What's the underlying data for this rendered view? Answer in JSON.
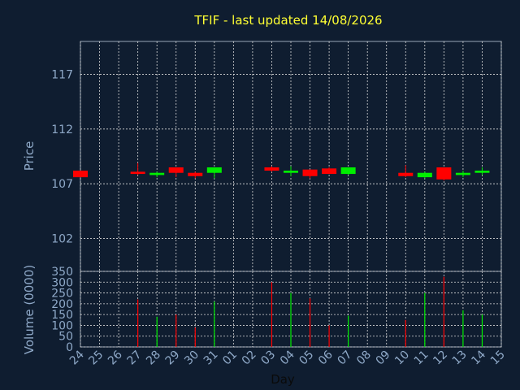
{
  "chart_data": [
    {
      "type": "candlestick",
      "title": "TFIF - last updated 14/08/2026",
      "ylabel": "Price",
      "ylim": [
        99,
        120
      ],
      "yticks": [
        102,
        107,
        112,
        117
      ],
      "grid": true,
      "x": [
        "24",
        "25",
        "26",
        "27",
        "28",
        "29",
        "30",
        "31",
        "01",
        "02",
        "03",
        "04",
        "05",
        "06",
        "07",
        "08",
        "09",
        "10",
        "11",
        "12",
        "13",
        "14",
        "15"
      ],
      "series": [
        {
          "x": "24",
          "open": 108.2,
          "high": 108.2,
          "low": 107.6,
          "close": 107.6,
          "color": "#ff0000"
        },
        {
          "x": "27",
          "open": 108.1,
          "high": 108.9,
          "low": 107.8,
          "close": 107.9,
          "color": "#ff0000"
        },
        {
          "x": "28",
          "open": 107.8,
          "high": 108.1,
          "low": 107.6,
          "close": 108.0,
          "color": "#00ee00"
        },
        {
          "x": "29",
          "open": 108.5,
          "high": 108.5,
          "low": 107.6,
          "close": 108.0,
          "color": "#ff0000"
        },
        {
          "x": "30",
          "open": 108.0,
          "high": 108.1,
          "low": 107.5,
          "close": 107.7,
          "color": "#ff0000"
        },
        {
          "x": "31",
          "open": 108.0,
          "high": 108.5,
          "low": 107.5,
          "close": 108.5,
          "color": "#00ee00"
        },
        {
          "x": "03",
          "open": 108.5,
          "high": 108.6,
          "low": 108.1,
          "close": 108.2,
          "color": "#ff0000"
        },
        {
          "x": "04",
          "open": 108.0,
          "high": 108.6,
          "low": 107.7,
          "close": 108.2,
          "color": "#00ee00"
        },
        {
          "x": "05",
          "open": 108.3,
          "high": 108.3,
          "low": 107.5,
          "close": 107.7,
          "color": "#ff0000"
        },
        {
          "x": "06",
          "open": 108.4,
          "high": 108.5,
          "low": 107.9,
          "close": 107.9,
          "color": "#ff0000"
        },
        {
          "x": "07",
          "open": 107.9,
          "high": 108.5,
          "low": 107.8,
          "close": 108.5,
          "color": "#00ee00"
        },
        {
          "x": "10",
          "open": 108.0,
          "high": 108.7,
          "low": 107.6,
          "close": 107.7,
          "color": "#ff0000"
        },
        {
          "x": "11",
          "open": 107.6,
          "high": 108.1,
          "low": 107.5,
          "close": 108.0,
          "color": "#00ee00"
        },
        {
          "x": "12",
          "open": 108.5,
          "high": 108.5,
          "low": 107.3,
          "close": 107.4,
          "color": "#ff0000"
        },
        {
          "x": "13",
          "open": 107.8,
          "high": 108.2,
          "low": 107.6,
          "close": 108.0,
          "color": "#00ee00"
        },
        {
          "x": "14",
          "open": 108.0,
          "high": 108.5,
          "low": 107.8,
          "close": 108.2,
          "color": "#00ee00"
        }
      ]
    },
    {
      "type": "bar",
      "ylabel": "Volume (0000)",
      "xlabel": "Day",
      "ylim": [
        0,
        350
      ],
      "yticks": [
        0,
        50,
        100,
        150,
        200,
        250,
        300,
        350
      ],
      "grid": true,
      "categories": [
        "24",
        "25",
        "26",
        "27",
        "28",
        "29",
        "30",
        "31",
        "01",
        "02",
        "03",
        "04",
        "05",
        "06",
        "07",
        "08",
        "09",
        "10",
        "11",
        "12",
        "13",
        "14",
        "15"
      ],
      "bars": [
        {
          "x": "27",
          "value": 220,
          "color": "#ff0000"
        },
        {
          "x": "28",
          "value": 140,
          "color": "#00ee00"
        },
        {
          "x": "29",
          "value": 150,
          "color": "#ff0000"
        },
        {
          "x": "30",
          "value": 90,
          "color": "#ff0000"
        },
        {
          "x": "31",
          "value": 210,
          "color": "#00ee00"
        },
        {
          "x": "03",
          "value": 300,
          "color": "#ff0000"
        },
        {
          "x": "04",
          "value": 250,
          "color": "#00ee00"
        },
        {
          "x": "05",
          "value": 225,
          "color": "#ff0000"
        },
        {
          "x": "06",
          "value": 100,
          "color": "#ff0000"
        },
        {
          "x": "07",
          "value": 145,
          "color": "#00ee00"
        },
        {
          "x": "10",
          "value": 125,
          "color": "#ff0000"
        },
        {
          "x": "11",
          "value": 250,
          "color": "#00ee00"
        },
        {
          "x": "12",
          "value": 325,
          "color": "#ff0000"
        },
        {
          "x": "13",
          "value": 170,
          "color": "#00ee00"
        },
        {
          "x": "14",
          "value": 150,
          "color": "#00ee00"
        }
      ]
    }
  ],
  "colors": {
    "background": "#0f1d30",
    "title": "#ffff33",
    "axis_text": "#8fa9c8",
    "grid": "#d8d8d8",
    "up": "#00ee00",
    "down": "#ff0000"
  }
}
